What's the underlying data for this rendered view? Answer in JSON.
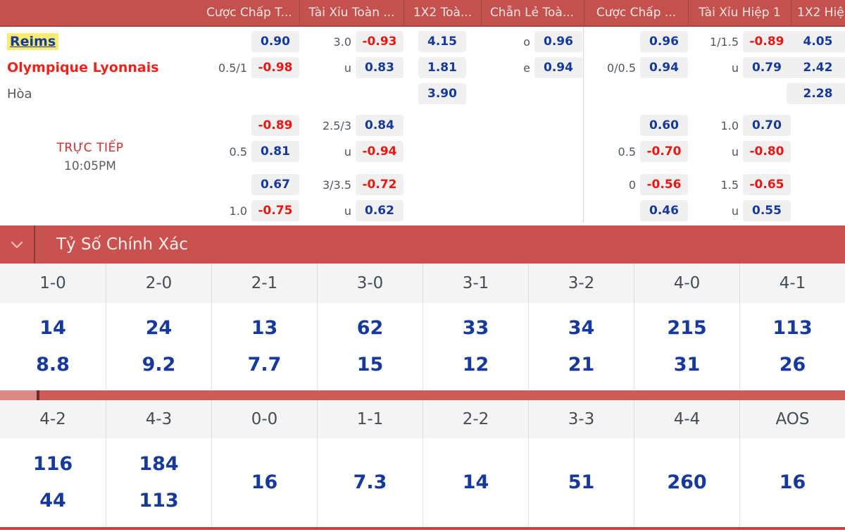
{
  "match": {
    "home_team": "Reims",
    "away_team": "Olympique Lyonnais",
    "draw_label": "Hòa",
    "live": {
      "label": "TRỰC TIẾP",
      "time": "10:05PM"
    }
  },
  "odds_table": {
    "column_headers": [
      "Cược Chấp T...",
      "Tài Xỉu Toàn ...",
      "1X2 Toà...",
      "Chẵn Lẻ Toà...",
      "Cược Chấp ...",
      "Tài Xỉu Hiệp 1",
      "1X2 Hiệ"
    ],
    "rows": [
      {
        "team": {
          "text": "Reims",
          "style": "home"
        },
        "cells": [
          {
            "label": "",
            "value": "0.90",
            "tone": "pos"
          },
          {
            "label": "3.0",
            "value": "-0.93",
            "tone": "neg"
          },
          {
            "label": "",
            "value": "4.15",
            "tone": "pos"
          },
          {
            "label": "o",
            "value": "0.96",
            "tone": "pos"
          },
          {
            "label": "",
            "value": "0.96",
            "tone": "pos"
          },
          {
            "label": "1/1.5",
            "value": "-0.89",
            "tone": "neg"
          },
          {
            "label": "",
            "value": "4.05",
            "tone": "pos"
          }
        ]
      },
      {
        "team": {
          "text": "Olympique Lyonnais",
          "style": "away"
        },
        "cells": [
          {
            "label": "0.5/1",
            "value": "-0.98",
            "tone": "neg"
          },
          {
            "label": "u",
            "value": "0.83",
            "tone": "pos"
          },
          {
            "label": "",
            "value": "1.81",
            "tone": "pos"
          },
          {
            "label": "e",
            "value": "0.94",
            "tone": "pos"
          },
          {
            "label": "0/0.5",
            "value": "0.94",
            "tone": "pos"
          },
          {
            "label": "u",
            "value": "0.79",
            "tone": "pos"
          },
          {
            "label": "",
            "value": "2.42",
            "tone": "pos"
          }
        ]
      },
      {
        "team": {
          "text": "Hòa",
          "style": "draw"
        },
        "cells": [
          null,
          null,
          {
            "label": "",
            "value": "3.90",
            "tone": "pos"
          },
          null,
          null,
          null,
          {
            "label": "",
            "value": "2.28",
            "tone": "pos"
          }
        ]
      },
      {
        "team": null,
        "cells": [
          {
            "label": "",
            "value": "-0.89",
            "tone": "neg"
          },
          {
            "label": "2.5/3",
            "value": "0.84",
            "tone": "pos"
          },
          null,
          null,
          {
            "label": "",
            "value": "0.60",
            "tone": "pos"
          },
          {
            "label": "1.0",
            "value": "0.70",
            "tone": "pos"
          },
          null
        ]
      },
      {
        "team": null,
        "cells": [
          {
            "label": "0.5",
            "value": "0.81",
            "tone": "pos"
          },
          {
            "label": "u",
            "value": "-0.94",
            "tone": "neg"
          },
          null,
          null,
          {
            "label": "0.5",
            "value": "-0.70",
            "tone": "neg"
          },
          {
            "label": "u",
            "value": "-0.80",
            "tone": "neg"
          },
          null
        ]
      },
      {
        "team": null,
        "cells": [
          {
            "label": "",
            "value": "0.67",
            "tone": "pos"
          },
          {
            "label": "3/3.5",
            "value": "-0.72",
            "tone": "neg"
          },
          null,
          null,
          {
            "label": "0",
            "value": "-0.56",
            "tone": "neg"
          },
          {
            "label": "1.5",
            "value": "-0.65",
            "tone": "neg"
          },
          null
        ]
      },
      {
        "team": null,
        "cells": [
          {
            "label": "1.0",
            "value": "-0.75",
            "tone": "neg"
          },
          {
            "label": "u",
            "value": "0.62",
            "tone": "pos"
          },
          null,
          null,
          {
            "label": "",
            "value": "0.46",
            "tone": "pos"
          },
          {
            "label": "u",
            "value": "0.55",
            "tone": "pos"
          },
          null
        ]
      }
    ]
  },
  "correct_score": {
    "title": "Tỷ Số Chính Xác",
    "groups": [
      {
        "headers": [
          "1-0",
          "2-0",
          "2-1",
          "3-0",
          "3-1",
          "3-2",
          "4-0",
          "4-1"
        ],
        "values": [
          [
            "14",
            "8.8"
          ],
          [
            "24",
            "9.2"
          ],
          [
            "13",
            "7.7"
          ],
          [
            "62",
            "15"
          ],
          [
            "33",
            "12"
          ],
          [
            "34",
            "21"
          ],
          [
            "215",
            "31"
          ],
          [
            "113",
            "26"
          ]
        ]
      },
      {
        "headers": [
          "4-2",
          "4-3",
          "0-0",
          "1-1",
          "2-2",
          "3-3",
          "4-4",
          "AOS"
        ],
        "values": [
          [
            "116",
            "44"
          ],
          [
            "184",
            "113"
          ],
          [
            "16"
          ],
          [
            "7.3"
          ],
          [
            "14"
          ],
          [
            "51"
          ],
          [
            "260"
          ],
          [
            "16"
          ]
        ]
      }
    ]
  },
  "colors": {
    "header_red": "#c5514f",
    "bar_red": "#c9514f",
    "odds_positive": "#16399e",
    "odds_negative": "#ee1510",
    "home_highlight": "#f9ea71",
    "away_red": "#ee241c",
    "cell_bg": "#f0f0f0"
  }
}
